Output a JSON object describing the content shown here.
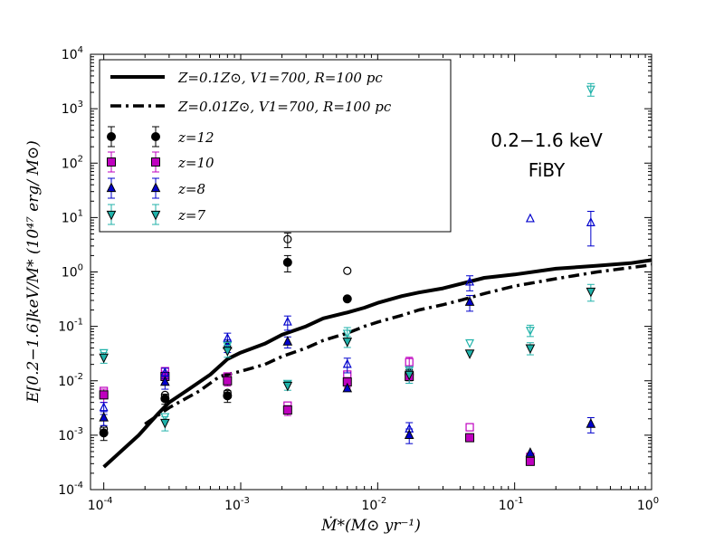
{
  "chart_data": {
    "type": "scatter",
    "title": "",
    "xlabel": "Ṁ*(M⊙ yr⁻¹)",
    "ylabel": "E[0.2−1.6]keV/M* (10⁴⁷ erg/ M⊙)",
    "xscale": "log",
    "yscale": "log",
    "xlim": [
      8e-05,
      1
    ],
    "ylim": [
      0.0001,
      10000
    ],
    "x_ticks": [
      {
        "value": 0.0001,
        "base": "10",
        "exp": "-4"
      },
      {
        "value": 0.001,
        "base": "10",
        "exp": "-3"
      },
      {
        "value": 0.01,
        "base": "10",
        "exp": "-2"
      },
      {
        "value": 0.1,
        "base": "10",
        "exp": "-1"
      },
      {
        "value": 1,
        "base": "10",
        "exp": "0"
      }
    ],
    "y_ticks": [
      {
        "value": 0.0001,
        "base": "10",
        "exp": "-4"
      },
      {
        "value": 0.001,
        "base": "10",
        "exp": "-3"
      },
      {
        "value": 0.01,
        "base": "10",
        "exp": "-2"
      },
      {
        "value": 0.1,
        "base": "10",
        "exp": "-1"
      },
      {
        "value": 1,
        "base": "10",
        "exp": "0"
      },
      {
        "value": 10,
        "base": "10",
        "exp": "1"
      },
      {
        "value": 100,
        "base": "10",
        "exp": "2"
      },
      {
        "value": 1000,
        "base": "10",
        "exp": "3"
      },
      {
        "value": 10000,
        "base": "10",
        "exp": "4"
      }
    ],
    "annotation": {
      "line1": "0.2−1.6 keV",
      "line2": "FiBY"
    },
    "legend_position": "top-left",
    "lines": [
      {
        "name": "Z=0.1Z⊙, V1=700, R=100 pc",
        "style": "solid",
        "x": [
          0.0001,
          0.00018,
          0.00025,
          0.0003,
          0.0004,
          0.0006,
          0.0008,
          0.001,
          0.0015,
          0.002,
          0.003,
          0.004,
          0.006,
          0.008,
          0.01,
          0.015,
          0.02,
          0.03,
          0.04,
          0.06,
          0.1,
          0.2,
          0.4,
          0.7,
          1.0
        ],
        "y": [
          0.00026,
          0.001,
          0.0025,
          0.004,
          0.0065,
          0.013,
          0.025,
          0.033,
          0.048,
          0.07,
          0.1,
          0.14,
          0.18,
          0.22,
          0.27,
          0.36,
          0.42,
          0.5,
          0.6,
          0.78,
          0.9,
          1.15,
          1.3,
          1.45,
          1.65
        ]
      },
      {
        "name": "Z=0.01Z⊙, V1=700, R=100 pc",
        "style": "dash-dot",
        "x": [
          0.0002,
          0.0003,
          0.0005,
          0.0007,
          0.001,
          0.0015,
          0.002,
          0.003,
          0.004,
          0.006,
          0.008,
          0.01,
          0.015,
          0.02,
          0.03,
          0.04,
          0.06,
          0.1,
          0.2,
          0.4,
          0.7,
          1.0
        ],
        "y": [
          0.0016,
          0.0032,
          0.0065,
          0.012,
          0.015,
          0.02,
          0.028,
          0.04,
          0.055,
          0.075,
          0.1,
          0.12,
          0.16,
          0.2,
          0.25,
          0.3,
          0.4,
          0.55,
          0.75,
          1.0,
          1.2,
          1.35
        ]
      }
    ],
    "series": [
      {
        "name": "z=12",
        "label": "z",
        "zval": "12",
        "marker": "circle",
        "color": "#000000",
        "filled": [
          [
            0.0001,
            0.0011,
            0.0003
          ],
          [
            0.00028,
            0.0047,
            0.001
          ],
          [
            0.0008,
            0.0053,
            0.0013
          ],
          [
            0.0022,
            1.5,
            0.5
          ],
          [
            0.006,
            0.32,
            0
          ],
          [
            0.017,
            0.013,
            0.003
          ]
        ],
        "open": [
          [
            0.0001,
            0.0013,
            0
          ],
          [
            0.00028,
            0.0055,
            0
          ],
          [
            0.0008,
            0.006,
            0
          ],
          [
            0.0022,
            4.0,
            1.2
          ],
          [
            0.006,
            1.05,
            0
          ],
          [
            0.017,
            0.014,
            0
          ]
        ]
      },
      {
        "name": "z=10",
        "label": "z",
        "zval": "10",
        "marker": "square",
        "color": "#bf00bf",
        "filled": [
          [
            0.0001,
            0.0055,
            0.0015
          ],
          [
            0.00028,
            0.012,
            0.003
          ],
          [
            0.0008,
            0.01,
            0.002
          ],
          [
            0.0022,
            0.0029,
            0.0006
          ],
          [
            0.006,
            0.0095,
            0.002
          ],
          [
            0.017,
            0.012,
            0.003
          ],
          [
            0.047,
            0.0009,
            0
          ],
          [
            0.13,
            0.00033,
            0
          ]
        ],
        "open": [
          [
            0.0001,
            0.0065,
            0
          ],
          [
            0.00028,
            0.015,
            0
          ],
          [
            0.0008,
            0.012,
            0
          ],
          [
            0.0022,
            0.0035,
            0
          ],
          [
            0.006,
            0.013,
            0
          ],
          [
            0.017,
            0.022,
            0.005
          ],
          [
            0.047,
            0.0014,
            0
          ],
          [
            0.13,
            0.0004,
            0
          ]
        ]
      },
      {
        "name": "z=8",
        "label": "z",
        "zval": "8",
        "marker": "triangle-up",
        "color": "#0000cc",
        "filled": [
          [
            0.0001,
            0.0021,
            0.0006
          ],
          [
            0.00028,
            0.0095,
            0.0025
          ],
          [
            0.0008,
            0.045,
            0.012
          ],
          [
            0.0022,
            0.052,
            0.012
          ],
          [
            0.006,
            0.0072,
            0
          ],
          [
            0.017,
            0.001,
            0.0003
          ],
          [
            0.047,
            0.28,
            0.09
          ],
          [
            0.13,
            0.00047,
            0
          ],
          [
            0.36,
            0.0016,
            0.0005
          ]
        ],
        "open": [
          [
            0.0001,
            0.0032,
            0.0008
          ],
          [
            0.00028,
            0.014,
            0.003
          ],
          [
            0.0008,
            0.06,
            0.015
          ],
          [
            0.0022,
            0.12,
            0.035
          ],
          [
            0.006,
            0.02,
            0.006
          ],
          [
            0.017,
            0.0013,
            0.0004
          ],
          [
            0.047,
            0.65,
            0.2
          ],
          [
            0.13,
            9.5,
            0
          ],
          [
            0.36,
            8.0,
            5.0
          ]
        ]
      },
      {
        "name": "z=7",
        "label": "z",
        "zval": "7",
        "marker": "triangle-down",
        "color": "#20b2aa",
        "filled": [
          [
            0.0001,
            0.027,
            0.006
          ],
          [
            0.00028,
            0.0017,
            0.0005
          ],
          [
            0.0008,
            0.036,
            0.009
          ],
          [
            0.0022,
            0.0082,
            0.0015
          ],
          [
            0.006,
            0.053,
            0.012
          ],
          [
            0.017,
            0.013,
            0.004
          ],
          [
            0.047,
            0.032,
            0
          ],
          [
            0.13,
            0.04,
            0.01
          ],
          [
            0.36,
            0.44,
            0.15
          ]
        ],
        "open": [
          [
            0.0001,
            0.033,
            0
          ],
          [
            0.00028,
            0.0022,
            0
          ],
          [
            0.0008,
            0.045,
            0
          ],
          [
            0.0022,
            0.009,
            0
          ],
          [
            0.006,
            0.075,
            0.02
          ],
          [
            0.017,
            0.016,
            0
          ],
          [
            0.047,
            0.05,
            0
          ],
          [
            0.13,
            0.085,
            0.02
          ],
          [
            0.36,
            2300,
            600
          ]
        ]
      }
    ]
  }
}
